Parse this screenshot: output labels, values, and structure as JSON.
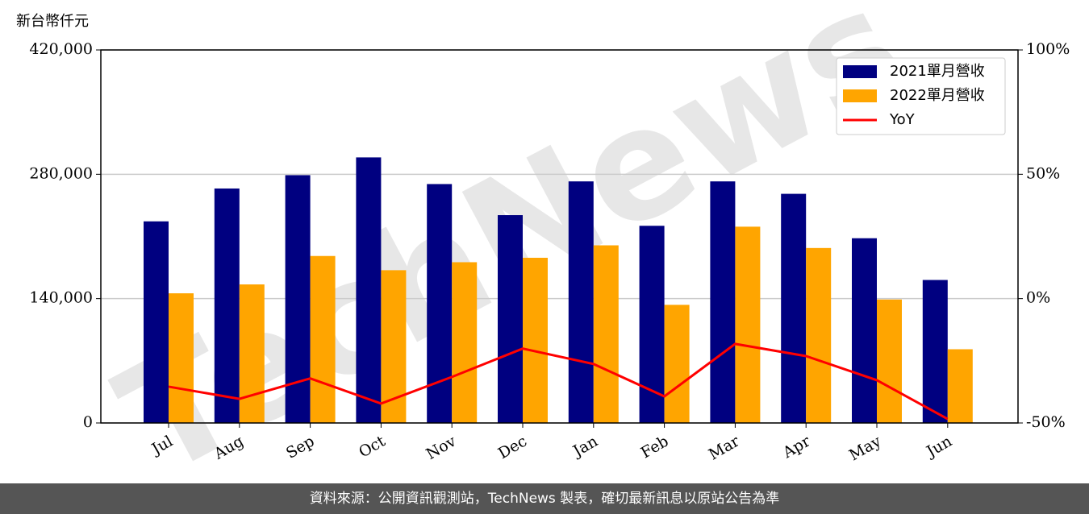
{
  "chart_data": {
    "type": "bar_line",
    "y_label": "新台幣仟元",
    "watermark": "TechNews",
    "categories": [
      "Jul",
      "Aug",
      "Sep",
      "Oct",
      "Nov",
      "Dec",
      "Jan",
      "Feb",
      "Mar",
      "Apr",
      "May",
      "Jun"
    ],
    "series": [
      {
        "name": "2021單月營收",
        "type": "bar",
        "color": "#000080",
        "values": [
          227000,
          264000,
          279000,
          299000,
          269000,
          234000,
          272000,
          222000,
          272000,
          258000,
          208000,
          161000
        ]
      },
      {
        "name": "2022單月營收",
        "type": "bar",
        "color": "#ffa500",
        "values": [
          146000,
          156000,
          188000,
          172000,
          181000,
          186000,
          200000,
          133000,
          221000,
          197000,
          139000,
          83000
        ]
      },
      {
        "name": "YoY",
        "type": "line",
        "axis": "y2",
        "color": "#ff0000",
        "values": [
          -35.4,
          -40.3,
          -32.1,
          -42.2,
          -31.5,
          -20.1,
          -26.3,
          -39.3,
          -18.2,
          -23.1,
          -32.8,
          -48.4
        ]
      }
    ],
    "ylim": [
      0,
      420000
    ],
    "yticks": [
      {
        "value": 0,
        "label": "0"
      },
      {
        "value": 140000,
        "label": "140,000"
      },
      {
        "value": 280000,
        "label": "280,000"
      },
      {
        "value": 420000,
        "label": "420,000"
      }
    ],
    "y2lim": [
      -50,
      100
    ],
    "y2ticks": [
      {
        "value": -50,
        "label": "-50%"
      },
      {
        "value": 0,
        "label": "0%"
      },
      {
        "value": 50,
        "label": "50%"
      },
      {
        "value": 100,
        "label": "100%"
      }
    ],
    "grid": true,
    "legend": "upper right"
  },
  "footer": "資料來源：公開資訊觀測站，TechNews 製表，確切最新訊息以原站公告為準"
}
